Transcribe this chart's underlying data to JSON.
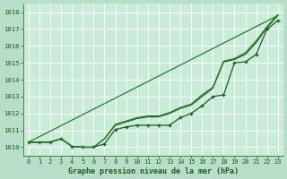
{
  "title": "Graphe pression niveau de la mer (hPa)",
  "bg_color": "#b8ddc8",
  "plot_bg_color": "#c8ecd8",
  "grid_color": "#ffffff",
  "line_color_dark": "#1a5c1a",
  "line_color_mid": "#2a7a2a",
  "xlim": [
    -0.5,
    23.5
  ],
  "ylim": [
    1009.5,
    1018.5
  ],
  "yticks": [
    1010,
    1011,
    1012,
    1013,
    1014,
    1015,
    1016,
    1017,
    1018
  ],
  "xticks": [
    0,
    1,
    2,
    3,
    4,
    5,
    6,
    7,
    8,
    9,
    10,
    11,
    12,
    13,
    14,
    15,
    16,
    17,
    18,
    19,
    20,
    21,
    22,
    23
  ],
  "line1_x": [
    0,
    1,
    2,
    3,
    4,
    5,
    6,
    7,
    8,
    9,
    10,
    11,
    12,
    13,
    14,
    15,
    16,
    17,
    18,
    19,
    20,
    21,
    22,
    23
  ],
  "line1_y": [
    1010.3,
    1010.3,
    1010.3,
    1010.5,
    1010.05,
    1010.0,
    1010.0,
    1010.2,
    1011.05,
    1011.2,
    1011.3,
    1011.3,
    1011.3,
    1011.3,
    1011.75,
    1012.0,
    1012.45,
    1013.0,
    1013.1,
    1015.0,
    1015.05,
    1015.5,
    1017.0,
    1017.5
  ],
  "line2_x": [
    0,
    1,
    2,
    3,
    4,
    5,
    6,
    7,
    8,
    9,
    10,
    11,
    12,
    13,
    14,
    15,
    16,
    17,
    18,
    19,
    20,
    21,
    22,
    23
  ],
  "line2_y": [
    1010.3,
    1010.3,
    1010.3,
    1010.5,
    1010.05,
    1010.0,
    1010.0,
    1010.5,
    1011.3,
    1011.5,
    1011.7,
    1011.8,
    1011.8,
    1012.0,
    1012.3,
    1012.5,
    1013.0,
    1013.5,
    1015.05,
    1015.2,
    1015.5,
    1016.2,
    1017.1,
    1017.8
  ],
  "line3_x": [
    0,
    1,
    2,
    3,
    4,
    5,
    6,
    7,
    8,
    9,
    10,
    11,
    12,
    13,
    14,
    15,
    16,
    17,
    18,
    19,
    20,
    21,
    22,
    23
  ],
  "line3_y": [
    1010.3,
    1010.3,
    1010.3,
    1010.5,
    1010.05,
    1010.0,
    1010.0,
    1010.5,
    1011.35,
    1011.55,
    1011.75,
    1011.85,
    1011.85,
    1012.05,
    1012.35,
    1012.55,
    1013.1,
    1013.55,
    1015.1,
    1015.25,
    1015.6,
    1016.3,
    1017.15,
    1017.85
  ],
  "line4_x": [
    0,
    23
  ],
  "line4_y": [
    1010.3,
    1017.8
  ]
}
